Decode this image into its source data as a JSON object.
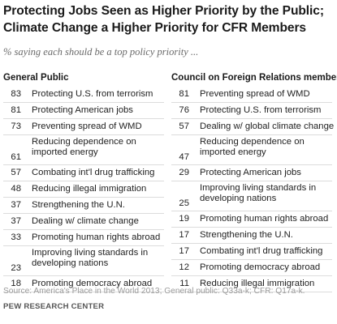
{
  "title_line1": "Protecting Jobs Seen as Higher Priority by the Public;",
  "title_line2": "Climate Change  a Higher Priority for CFR Members",
  "subtitle": "% saying each should be a top policy priority ...",
  "left": {
    "heading": "General Public",
    "items": [
      {
        "value": "83",
        "label": "Protecting U.S. from terrorism"
      },
      {
        "value": "81",
        "label": "Protecting American jobs"
      },
      {
        "value": "73",
        "label": "Preventing spread of WMD"
      },
      {
        "value": "61",
        "label_line1": "Reducing dependence on",
        "label_line2": "imported energy"
      },
      {
        "value": "57",
        "label": "Combating int'l drug trafficking"
      },
      {
        "value": "48",
        "label": "Reducing illegal immigration"
      },
      {
        "value": "37",
        "label": "Strengthening the U.N."
      },
      {
        "value": "37",
        "label": "Dealing w/ climate change"
      },
      {
        "value": "33",
        "label": "Promoting human rights abroad"
      },
      {
        "value": "23",
        "label_line1": "Improving living standards in",
        "label_line2": "developing nations"
      },
      {
        "value": "18",
        "label": "Promoting democracy abroad"
      }
    ]
  },
  "right": {
    "heading": "Council on Foreign Relations members",
    "items": [
      {
        "value": "81",
        "label": "Preventing spread of WMD"
      },
      {
        "value": "76",
        "label": "Protecting U.S. from terrorism"
      },
      {
        "value": "57",
        "label": "Dealing w/ global climate change"
      },
      {
        "value": "47",
        "label_line1": "Reducing dependence on",
        "label_line2": "imported energy"
      },
      {
        "value": "29",
        "label": "Protecting American jobs"
      },
      {
        "value": "25",
        "label_line1": "Improving living standards in",
        "label_line2": "developing nations"
      },
      {
        "value": "19",
        "label": "Promoting human rights abroad"
      },
      {
        "value": "17",
        "label": "Strengthening the U.N."
      },
      {
        "value": "17",
        "label": "Combating int'l drug trafficking"
      },
      {
        "value": "12",
        "label": "Promoting democracy abroad"
      },
      {
        "value": "11",
        "label": "Reducing illegal immigration"
      }
    ]
  },
  "source": "Source: America's Place in the World 2013; General public: Q33a-k; CFR: Q17a-k.",
  "footer": "PEW RESEARCH CENTER"
}
